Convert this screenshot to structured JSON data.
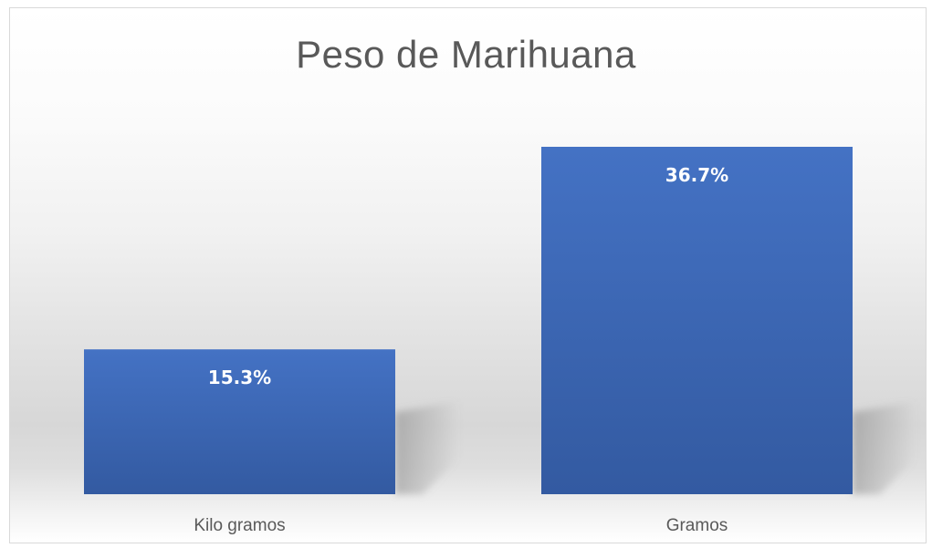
{
  "chart_data": {
    "type": "bar",
    "title": "Peso de Marihuana",
    "categories": [
      "Kilo gramos",
      "Gramos"
    ],
    "values": [
      15.3,
      36.7
    ],
    "data_labels": [
      "15.3%",
      "36.7%"
    ],
    "xlabel": "",
    "ylabel": "",
    "ylim": [
      0,
      45
    ],
    "grid": false,
    "legend": "none",
    "bar_color": "#4472c4",
    "bar_color_dark": "#335aa1"
  }
}
